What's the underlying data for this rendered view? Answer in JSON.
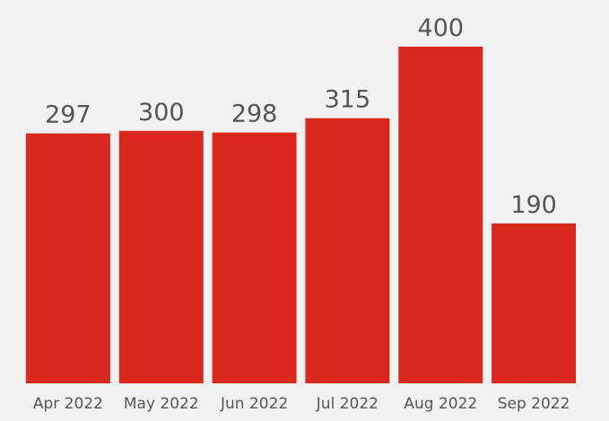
{
  "chart_data": {
    "type": "bar",
    "categories": [
      "Apr 2022",
      "May 2022",
      "Jun 2022",
      "Jul 2022",
      "Aug 2022",
      "Sep 2022"
    ],
    "values": [
      297,
      300,
      298,
      315,
      400,
      190
    ],
    "title": "",
    "xlabel": "",
    "ylabel": "",
    "ylim": [
      0,
      400
    ],
    "grid": false,
    "bar_color": "#d9281e",
    "label_color": "#555555",
    "background": "#f2f2f2"
  }
}
